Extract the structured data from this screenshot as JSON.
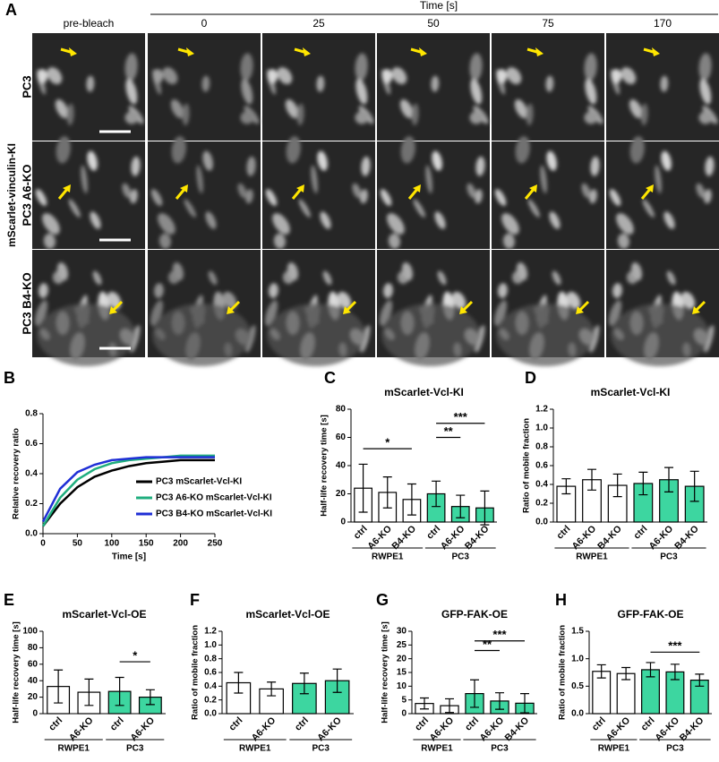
{
  "panel_a": {
    "letter": "A",
    "time_label": "Time [s]",
    "columns": [
      "pre-bleach",
      "0",
      "25",
      "50",
      "75",
      "170"
    ],
    "rows": [
      "PC3",
      "PC3 A6-KO",
      "PC3 B4-KO"
    ],
    "side_label": "mScarlet-vinculin-KI"
  },
  "chart_data": [
    {
      "type": "line",
      "panel": "B",
      "xlabel": "Time [s]",
      "ylabel": "Relative recovery ratio",
      "x": [
        0,
        25,
        50,
        75,
        100,
        125,
        150,
        175,
        200,
        225,
        250
      ],
      "series": [
        {
          "name": "PC3 mScarlet-Vcl-KI",
          "color": "#000000",
          "values": [
            0.05,
            0.2,
            0.31,
            0.38,
            0.42,
            0.45,
            0.47,
            0.48,
            0.49,
            0.49,
            0.49
          ]
        },
        {
          "name": "PC3 A6-KO mScarlet-Vcl-KI",
          "color": "#1fae7e",
          "values": [
            0.05,
            0.24,
            0.36,
            0.43,
            0.47,
            0.49,
            0.5,
            0.51,
            0.52,
            0.52,
            0.52
          ]
        },
        {
          "name": "PC3 B4-KO mScarlet-Vcl-KI",
          "color": "#1f2fd6",
          "values": [
            0.08,
            0.3,
            0.41,
            0.46,
            0.49,
            0.5,
            0.51,
            0.51,
            0.51,
            0.51,
            0.51
          ]
        }
      ],
      "xlim": [
        0,
        250
      ],
      "xticks": [
        0,
        50,
        100,
        150,
        200,
        250
      ],
      "ylim": [
        0,
        0.8
      ],
      "yticks": [
        {
          "value": 0,
          "label": "0.0"
        },
        0.2,
        0.4,
        0.6,
        0.8
      ],
      "legend": "lower right"
    },
    {
      "type": "bar",
      "panel": "C",
      "title": "mScarlet-Vcl-KI",
      "ylabel": "Half-life recovery time [s]",
      "categories": [
        "ctrl",
        "A6-KO",
        "B4-KO",
        "ctrl",
        "A6-KO",
        "B4-KO"
      ],
      "values": [
        24,
        21,
        16,
        20,
        11,
        10
      ],
      "errors": [
        17,
        11,
        11,
        9,
        8,
        12
      ],
      "groups": [
        {
          "name": "RWPE1",
          "count": 3,
          "color": "#ffffff"
        },
        {
          "name": "PC3",
          "count": 3,
          "color": "#3dd6a0"
        }
      ],
      "ylim": [
        0,
        80
      ],
      "yticks": [
        0,
        20,
        40,
        60,
        80
      ],
      "brackets": [
        {
          "from": 0,
          "to": 2,
          "y": 52,
          "label": "*"
        },
        {
          "from": 3,
          "to": 4,
          "y": 60,
          "label": "**"
        },
        {
          "from": 3,
          "to": 5,
          "y": 70,
          "label": "***"
        }
      ]
    },
    {
      "type": "bar",
      "panel": "D",
      "title": "mScarlet-Vcl-KI",
      "ylabel": "Ratio of mobile fraction",
      "categories": [
        "ctrl",
        "A6-KO",
        "B4-KO",
        "ctrl",
        "A6-KO",
        "B4-KO"
      ],
      "values": [
        0.38,
        0.45,
        0.39,
        0.41,
        0.45,
        0.38
      ],
      "errors": [
        0.08,
        0.11,
        0.12,
        0.12,
        0.13,
        0.16
      ],
      "groups": [
        {
          "name": "RWPE1",
          "count": 3,
          "color": "#ffffff"
        },
        {
          "name": "PC3",
          "count": 3,
          "color": "#3dd6a0"
        }
      ],
      "ylim": [
        0,
        1.2
      ],
      "yticks": [
        {
          "value": 0,
          "label": "0.0"
        },
        0.2,
        0.4,
        0.6,
        0.8,
        {
          "value": 1,
          "label": "1.0"
        },
        1.2
      ]
    },
    {
      "type": "bar",
      "panel": "E",
      "title": "mScarlet-Vcl-OE",
      "ylabel": "Half-life recovery time [s]",
      "categories": [
        "ctrl",
        "A6-KO",
        "ctrl",
        "A6-KO"
      ],
      "values": [
        33,
        26,
        27,
        20
      ],
      "errors": [
        20,
        16,
        17,
        9
      ],
      "groups": [
        {
          "name": "RWPE1",
          "count": 2,
          "color": "#ffffff"
        },
        {
          "name": "PC3",
          "count": 2,
          "color": "#3dd6a0"
        }
      ],
      "ylim": [
        0,
        100
      ],
      "yticks": [
        0,
        20,
        40,
        60,
        80,
        100
      ],
      "brackets": [
        {
          "from": 2,
          "to": 3,
          "y": 63,
          "label": "*"
        }
      ]
    },
    {
      "type": "bar",
      "panel": "F",
      "title": "mScarlet-Vcl-OE",
      "ylabel": "Ratio of mobile fraction",
      "categories": [
        "ctrl",
        "A6-KO",
        "ctrl",
        "A6-KO"
      ],
      "values": [
        0.45,
        0.36,
        0.44,
        0.48
      ],
      "errors": [
        0.15,
        0.1,
        0.15,
        0.17
      ],
      "groups": [
        {
          "name": "RWPE1",
          "count": 2,
          "color": "#ffffff"
        },
        {
          "name": "PC3",
          "count": 2,
          "color": "#3dd6a0"
        }
      ],
      "ylim": [
        0,
        1.2
      ],
      "yticks": [
        {
          "value": 0,
          "label": "0.0"
        },
        0.2,
        0.4,
        0.6,
        0.8,
        {
          "value": 1,
          "label": "1.0"
        },
        1.2
      ]
    },
    {
      "type": "bar",
      "panel": "G",
      "title": "GFP-FAK-OE",
      "ylabel": "Half-life recovery time [s]",
      "categories": [
        "ctrl",
        "A6-KO",
        "ctrl",
        "A6-KO",
        "B4-KO"
      ],
      "values": [
        3.7,
        2.9,
        7.3,
        4.6,
        3.8
      ],
      "errors": [
        2,
        2.5,
        5,
        3,
        3.5
      ],
      "groups": [
        {
          "name": "RWPE1",
          "count": 2,
          "color": "#ffffff"
        },
        {
          "name": "PC3",
          "count": 3,
          "color": "#3dd6a0"
        }
      ],
      "ylim": [
        0,
        30
      ],
      "yticks": [
        0,
        5,
        10,
        15,
        20,
        25,
        30
      ],
      "brackets": [
        {
          "from": 2,
          "to": 3,
          "y": 23,
          "label": "**"
        },
        {
          "from": 2,
          "to": 4,
          "y": 26.5,
          "label": "***"
        }
      ]
    },
    {
      "type": "bar",
      "panel": "H",
      "title": "GFP-FAK-OE",
      "ylabel": "Ratio of mobile fraction",
      "categories": [
        "ctrl",
        "A6-KO",
        "ctrl",
        "A6-KO",
        "B4-KO"
      ],
      "values": [
        0.77,
        0.73,
        0.8,
        0.76,
        0.61
      ],
      "errors": [
        0.12,
        0.11,
        0.13,
        0.14,
        0.11
      ],
      "groups": [
        {
          "name": "RWPE1",
          "count": 2,
          "color": "#ffffff"
        },
        {
          "name": "PC3",
          "count": 3,
          "color": "#3dd6a0"
        }
      ],
      "ylim": [
        0,
        1.5
      ],
      "yticks": [
        {
          "value": 0,
          "label": "0.0"
        },
        0.5,
        {
          "value": 1,
          "label": "1.0"
        },
        1.5
      ],
      "brackets": [
        {
          "from": 2,
          "to": 4,
          "y": 1.12,
          "label": "***"
        }
      ]
    }
  ]
}
